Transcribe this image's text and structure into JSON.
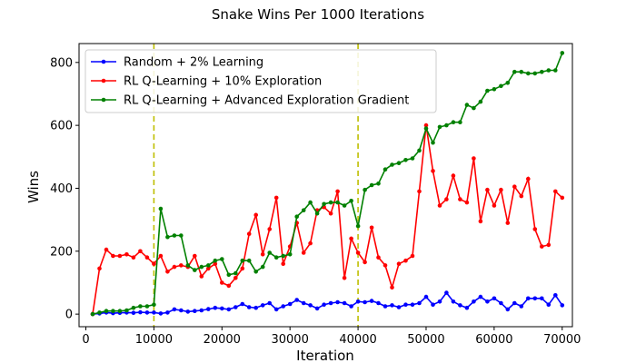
{
  "chart_data": {
    "type": "line",
    "title": "Snake Wins Per 1000 Iterations",
    "xlabel": "Iteration",
    "ylabel": "Wins",
    "xlim": [
      -1000,
      71500
    ],
    "ylim": [
      -40,
      860
    ],
    "xticks": [
      0,
      10000,
      20000,
      30000,
      40000,
      50000,
      60000,
      70000
    ],
    "yticks": [
      0,
      200,
      400,
      600,
      800
    ],
    "vlines": [
      10000,
      40000
    ],
    "vline_color": "#bfbf00",
    "grid": false,
    "legend_position": "upper-left",
    "x": [
      1000,
      2000,
      3000,
      4000,
      5000,
      6000,
      7000,
      8000,
      9000,
      10000,
      11000,
      12000,
      13000,
      14000,
      15000,
      16000,
      17000,
      18000,
      19000,
      20000,
      21000,
      22000,
      23000,
      24000,
      25000,
      26000,
      27000,
      28000,
      29000,
      30000,
      31000,
      32000,
      33000,
      34000,
      35000,
      36000,
      37000,
      38000,
      39000,
      40000,
      41000,
      42000,
      43000,
      44000,
      45000,
      46000,
      47000,
      48000,
      49000,
      50000,
      51000,
      52000,
      53000,
      54000,
      55000,
      56000,
      57000,
      58000,
      59000,
      60000,
      61000,
      62000,
      63000,
      64000,
      65000,
      66000,
      67000,
      68000,
      69000,
      70000
    ],
    "series": [
      {
        "name": "Random + 2% Learning",
        "color": "#0000ff",
        "values": [
          0,
          2,
          5,
          3,
          4,
          5,
          4,
          6,
          5,
          5,
          2,
          5,
          15,
          12,
          8,
          10,
          12,
          16,
          20,
          18,
          15,
          22,
          32,
          22,
          20,
          28,
          35,
          15,
          25,
          32,
          45,
          35,
          28,
          18,
          30,
          35,
          38,
          35,
          25,
          40,
          38,
          42,
          35,
          25,
          28,
          22,
          30,
          30,
          35,
          55,
          30,
          40,
          68,
          40,
          28,
          20,
          40,
          55,
          40,
          50,
          35,
          15,
          35,
          25,
          50,
          50,
          50,
          30,
          60,
          28
        ],
        "legend_marker": "line-dot"
      },
      {
        "name": "RL Q-Learning + 10% Exploration",
        "color": "#ff0000",
        "values": [
          0,
          145,
          205,
          185,
          185,
          190,
          180,
          200,
          180,
          160,
          185,
          135,
          150,
          155,
          150,
          185,
          120,
          145,
          160,
          100,
          90,
          115,
          145,
          255,
          315,
          190,
          270,
          370,
          160,
          215,
          290,
          195,
          225,
          330,
          340,
          320,
          390,
          115,
          240,
          195,
          165,
          275,
          180,
          155,
          85,
          160,
          170,
          185,
          390,
          600,
          455,
          345,
          365,
          440,
          365,
          355,
          495,
          295,
          395,
          345,
          395,
          290,
          405,
          375,
          430,
          270,
          215,
          220,
          390,
          370
        ],
        "legend_marker": "line-dot"
      },
      {
        "name": "RL Q-Learning + Advanced Exploration Gradient",
        "color": "#008000",
        "values": [
          0,
          5,
          10,
          10,
          10,
          12,
          20,
          25,
          25,
          30,
          335,
          245,
          250,
          250,
          155,
          140,
          150,
          155,
          170,
          175,
          125,
          130,
          170,
          170,
          135,
          150,
          195,
          180,
          185,
          190,
          310,
          330,
          355,
          320,
          350,
          355,
          355,
          345,
          360,
          280,
          395,
          410,
          415,
          460,
          475,
          480,
          490,
          495,
          520,
          590,
          545,
          595,
          600,
          610,
          610,
          665,
          655,
          675,
          710,
          715,
          725,
          735,
          770,
          770,
          765,
          765,
          770,
          775,
          775,
          830
        ]
      }
    ]
  }
}
